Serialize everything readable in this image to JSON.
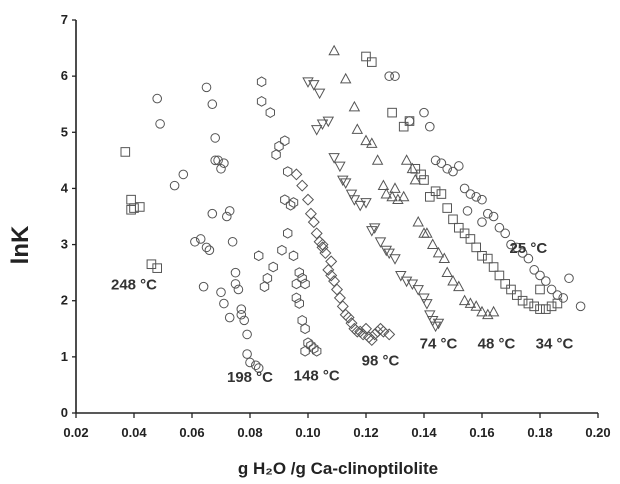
{
  "chart_data": {
    "type": "scatter",
    "xlabel": "g H₂O /g Ca-clinoptilolite",
    "ylabel": "lnK",
    "xlim": [
      0.02,
      0.2
    ],
    "ylim": [
      0,
      7
    ],
    "xticks": [
      "0.02",
      "0.04",
      "0.06",
      "0.08",
      "0.10",
      "0.12",
      "0.14",
      "0.16",
      "0.18",
      "0.20"
    ],
    "yticks": [
      "0",
      "1",
      "2",
      "3",
      "4",
      "5",
      "6",
      "7"
    ],
    "grid": false,
    "series": [
      {
        "name": "248 °C",
        "marker": "square",
        "label": {
          "text": "248 °C",
          "x": 0.04,
          "y": 2.2
        },
        "x": [
          0.037,
          0.039,
          0.04,
          0.039,
          0.042,
          0.046,
          0.048
        ],
        "y": [
          4.65,
          3.8,
          3.65,
          3.62,
          3.67,
          2.65,
          2.58
        ]
      },
      {
        "name": "198 °C",
        "marker": "circle",
        "label": {
          "text": "198 °C",
          "x": 0.08,
          "y": 0.55
        },
        "x": [
          0.048,
          0.049,
          0.054,
          0.057,
          0.061,
          0.063,
          0.065,
          0.066,
          0.065,
          0.067,
          0.068,
          0.068,
          0.069,
          0.07,
          0.071,
          0.072,
          0.073,
          0.074,
          0.075,
          0.075,
          0.076,
          0.077,
          0.077,
          0.078,
          0.079,
          0.079,
          0.08,
          0.082,
          0.083,
          0.067,
          0.064,
          0.07,
          0.071,
          0.073
        ],
        "y": [
          5.6,
          5.15,
          4.05,
          4.25,
          3.05,
          3.1,
          2.95,
          2.9,
          5.8,
          5.5,
          4.9,
          4.5,
          4.5,
          4.35,
          4.45,
          3.5,
          3.6,
          3.05,
          2.5,
          2.3,
          2.2,
          1.85,
          1.75,
          1.65,
          1.4,
          1.05,
          0.9,
          0.85,
          0.8,
          3.55,
          2.25,
          2.15,
          1.95,
          1.7
        ]
      },
      {
        "name": "148 °C",
        "marker": "hexagon",
        "label": {
          "text": "148 °C",
          "x": 0.103,
          "y": 0.58
        },
        "x": [
          0.084,
          0.084,
          0.087,
          0.089,
          0.09,
          0.092,
          0.093,
          0.092,
          0.094,
          0.095,
          0.096,
          0.096,
          0.097,
          0.098,
          0.099,
          0.1,
          0.099,
          0.101,
          0.102,
          0.103,
          0.097,
          0.098,
          0.099,
          0.095,
          0.093,
          0.091,
          0.088,
          0.086,
          0.085,
          0.083
        ],
        "y": [
          5.9,
          5.55,
          5.35,
          4.6,
          4.75,
          4.85,
          4.3,
          3.8,
          3.7,
          3.75,
          2.3,
          2.05,
          1.95,
          1.65,
          1.5,
          1.25,
          1.1,
          1.2,
          1.15,
          1.1,
          2.5,
          2.4,
          2.3,
          2.8,
          3.2,
          2.9,
          2.6,
          2.4,
          2.25,
          2.8
        ]
      },
      {
        "name": "98 °C",
        "marker": "diamond",
        "label": {
          "text": "98 °C",
          "x": 0.125,
          "y": 0.85
        },
        "x": [
          0.096,
          0.098,
          0.1,
          0.101,
          0.102,
          0.103,
          0.104,
          0.105,
          0.106,
          0.107,
          0.108,
          0.109,
          0.11,
          0.111,
          0.112,
          0.113,
          0.114,
          0.115,
          0.116,
          0.117,
          0.118,
          0.119,
          0.12,
          0.121,
          0.122,
          0.123,
          0.124,
          0.125,
          0.126,
          0.128,
          0.105,
          0.108
        ],
        "y": [
          4.25,
          4.05,
          3.8,
          3.55,
          3.4,
          3.2,
          3.05,
          3.0,
          2.85,
          2.55,
          2.45,
          2.35,
          2.2,
          2.05,
          1.9,
          1.75,
          1.7,
          1.6,
          1.5,
          1.45,
          1.45,
          1.4,
          1.5,
          1.35,
          1.3,
          1.4,
          1.45,
          1.5,
          1.45,
          1.4,
          2.95,
          2.7
        ]
      },
      {
        "name": "74 °C",
        "marker": "triangle-down",
        "label": {
          "text": "74 °C",
          "x": 0.145,
          "y": 1.15
        },
        "x": [
          0.1,
          0.102,
          0.104,
          0.103,
          0.105,
          0.107,
          0.109,
          0.111,
          0.112,
          0.113,
          0.115,
          0.116,
          0.118,
          0.12,
          0.122,
          0.123,
          0.125,
          0.127,
          0.128,
          0.13,
          0.132,
          0.134,
          0.136,
          0.138,
          0.14,
          0.141,
          0.142,
          0.143,
          0.144,
          0.145
        ],
        "y": [
          5.9,
          5.85,
          5.7,
          5.05,
          5.15,
          5.2,
          4.55,
          4.4,
          4.15,
          4.1,
          3.9,
          3.8,
          3.7,
          3.75,
          3.25,
          3.3,
          3.05,
          2.9,
          2.85,
          2.75,
          2.45,
          2.35,
          2.3,
          2.2,
          2.05,
          1.95,
          1.75,
          1.65,
          1.55,
          1.6
        ]
      },
      {
        "name": "48 °C",
        "marker": "triangle",
        "label": {
          "text": "48 °C",
          "x": 0.165,
          "y": 1.15
        },
        "x": [
          0.109,
          0.113,
          0.116,
          0.117,
          0.12,
          0.122,
          0.124,
          0.126,
          0.127,
          0.129,
          0.13,
          0.131,
          0.133,
          0.134,
          0.136,
          0.137,
          0.138,
          0.14,
          0.141,
          0.143,
          0.145,
          0.147,
          0.148,
          0.15,
          0.152,
          0.154,
          0.156,
          0.158,
          0.16,
          0.162,
          0.164
        ],
        "y": [
          6.45,
          5.95,
          5.45,
          5.05,
          4.85,
          4.8,
          4.5,
          4.05,
          3.9,
          3.85,
          4.0,
          3.8,
          3.85,
          4.5,
          4.35,
          4.15,
          3.4,
          3.2,
          3.2,
          3.0,
          2.85,
          2.75,
          2.5,
          2.35,
          2.25,
          2.0,
          1.95,
          1.9,
          1.8,
          1.75,
          1.8
        ]
      },
      {
        "name": "34 °C",
        "marker": "square",
        "label": {
          "text": "34 °C",
          "x": 0.185,
          "y": 1.15
        },
        "x": [
          0.12,
          0.122,
          0.129,
          0.133,
          0.135,
          0.137,
          0.139,
          0.14,
          0.142,
          0.144,
          0.146,
          0.148,
          0.15,
          0.152,
          0.154,
          0.156,
          0.158,
          0.16,
          0.162,
          0.164,
          0.166,
          0.168,
          0.17,
          0.172,
          0.174,
          0.176,
          0.178,
          0.18,
          0.182,
          0.184,
          0.186,
          0.18
        ],
        "y": [
          6.35,
          6.25,
          5.35,
          5.1,
          5.2,
          4.35,
          4.25,
          4.15,
          3.85,
          3.95,
          3.9,
          3.65,
          3.45,
          3.3,
          3.2,
          3.1,
          2.95,
          2.8,
          2.75,
          2.6,
          2.45,
          2.3,
          2.2,
          2.1,
          2.0,
          1.95,
          1.9,
          1.85,
          1.85,
          1.9,
          1.95,
          2.2
        ]
      },
      {
        "name": "25 °C",
        "marker": "circle",
        "label": {
          "text": "25 °C",
          "x": 0.176,
          "y": 2.85
        },
        "x": [
          0.128,
          0.13,
          0.135,
          0.14,
          0.142,
          0.144,
          0.146,
          0.148,
          0.15,
          0.152,
          0.154,
          0.156,
          0.158,
          0.16,
          0.162,
          0.164,
          0.166,
          0.168,
          0.17,
          0.172,
          0.174,
          0.176,
          0.178,
          0.18,
          0.182,
          0.184,
          0.186,
          0.188,
          0.19,
          0.194,
          0.155,
          0.16
        ],
        "y": [
          6.0,
          6.0,
          5.2,
          5.35,
          5.1,
          4.5,
          4.45,
          4.35,
          4.3,
          4.4,
          4.0,
          3.9,
          3.85,
          3.8,
          3.55,
          3.5,
          3.3,
          3.2,
          3.0,
          2.95,
          2.85,
          2.75,
          2.55,
          2.45,
          2.35,
          2.2,
          2.1,
          2.05,
          2.4,
          1.9,
          3.6,
          3.4
        ]
      }
    ]
  }
}
